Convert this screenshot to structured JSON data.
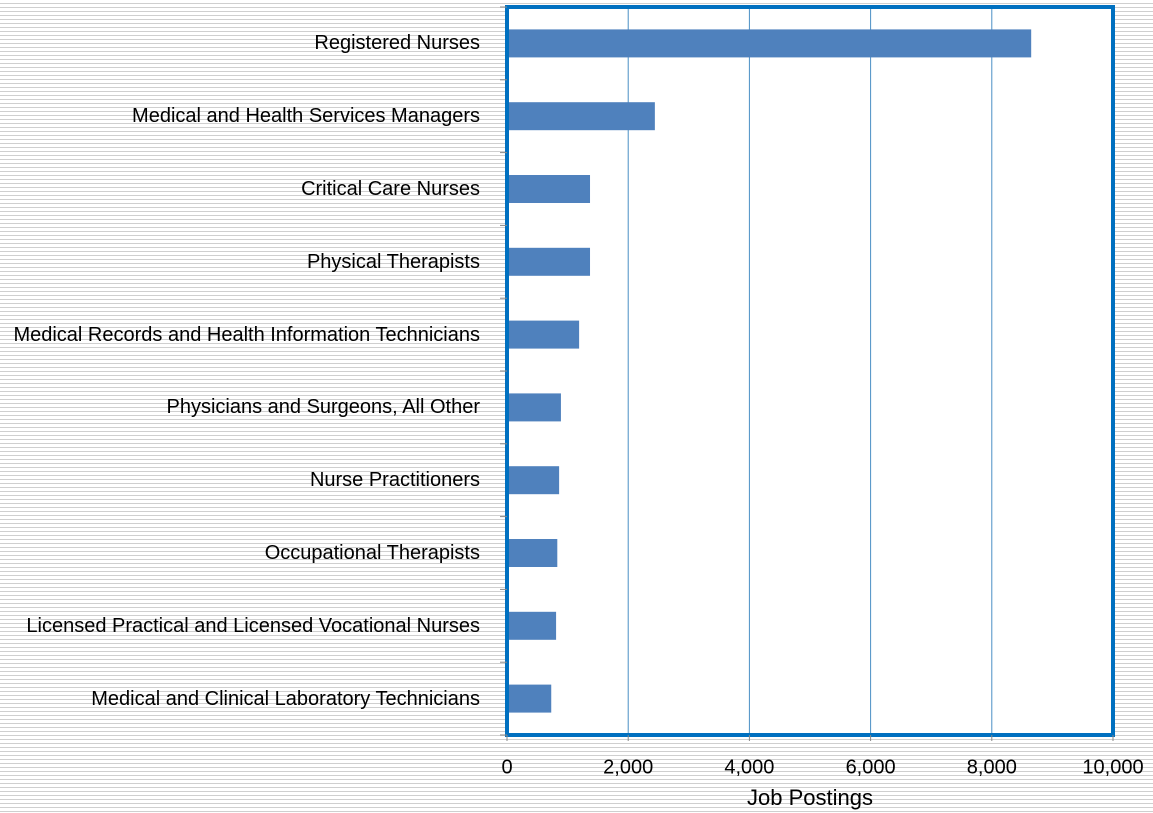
{
  "chart_data": {
    "type": "bar",
    "orientation": "horizontal",
    "categories": [
      "Registered Nurses",
      "Medical and Health Services Managers",
      "Critical Care Nurses",
      "Physical Therapists",
      "Medical Records and Health Information Technicians",
      "Physicians and Surgeons, All Other",
      "Nurse Practitioners",
      "Occupational Therapists",
      "Licensed Practical and Licensed Vocational Nurses",
      "Medical and Clinical Laboratory Technicians"
    ],
    "values": [
      8650,
      2440,
      1370,
      1370,
      1190,
      890,
      860,
      830,
      810,
      730
    ],
    "color": "#4f81bd",
    "x_label": "Job Postings",
    "xlim": [
      0,
      10000
    ],
    "xticks": [
      0,
      {
        "value": 2000,
        "label": "2,000"
      },
      {
        "value": 4000,
        "label": "4,000"
      },
      {
        "value": 6000,
        "label": "6,000"
      },
      {
        "value": 8000,
        "label": "8,000"
      },
      {
        "value": 10000,
        "label": "10,000"
      }
    ],
    "grid": true
  }
}
